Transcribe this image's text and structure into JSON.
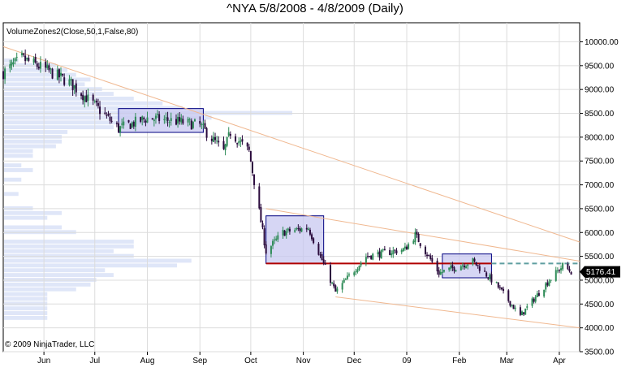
{
  "chart_data": {
    "type": "candlestick",
    "title": "^NYA  5/8/2008 - 4/8/2009 (Daily)",
    "indicator_label": "VolumeZones2(Close,50,1,False,80)",
    "copyright": "© 2009 NinjaTrader, LLC",
    "last_price": "5176.41",
    "last_value": 5176.41,
    "ylim": [
      3500,
      10400
    ],
    "y_ticks": [
      10000,
      9500,
      9000,
      8500,
      8000,
      7500,
      7000,
      6500,
      6000,
      5500,
      5000,
      4500,
      4000,
      3500
    ],
    "y_tick_labels": [
      "10000.00",
      "9500.00",
      "9000.00",
      "8500.00",
      "8000.00",
      "7500.00",
      "7000.00",
      "6500.00",
      "6000.00",
      "5500.00",
      "5000.00",
      "4500.00",
      "4000.00",
      "3500.00"
    ],
    "x_range": [
      "2008-05-08",
      "2009-04-13"
    ],
    "x_ticks": [
      {
        "label": "Jun",
        "date": "2008-06-01"
      },
      {
        "label": "Jul",
        "date": "2008-07-01"
      },
      {
        "label": "Aug",
        "date": "2008-08-01"
      },
      {
        "label": "Sep",
        "date": "2008-09-01"
      },
      {
        "label": "Oct",
        "date": "2008-10-01"
      },
      {
        "label": "Nov",
        "date": "2008-11-01"
      },
      {
        "label": "Dec",
        "date": "2008-12-01"
      },
      {
        "label": "09",
        "date": "2009-01-01"
      },
      {
        "label": "Feb",
        "date": "2009-02-01"
      },
      {
        "label": "Mar",
        "date": "2009-03-01"
      },
      {
        "label": "Apr",
        "date": "2009-04-01"
      }
    ],
    "close_path": [
      {
        "date": "2008-05-08",
        "close": 9350
      },
      {
        "date": "2008-05-19",
        "close": 9650
      },
      {
        "date": "2008-06-02",
        "close": 9420
      },
      {
        "date": "2008-06-16",
        "close": 9150
      },
      {
        "date": "2008-06-30",
        "close": 8700
      },
      {
        "date": "2008-07-15",
        "close": 8180
      },
      {
        "date": "2008-08-01",
        "close": 8400
      },
      {
        "date": "2008-08-15",
        "close": 8350
      },
      {
        "date": "2008-09-01",
        "close": 8250
      },
      {
        "date": "2008-09-15",
        "close": 7700
      },
      {
        "date": "2008-09-19",
        "close": 8100
      },
      {
        "date": "2008-09-30",
        "close": 7700
      },
      {
        "date": "2008-10-10",
        "close": 5600
      },
      {
        "date": "2008-10-20",
        "close": 6000
      },
      {
        "date": "2008-11-04",
        "close": 6100
      },
      {
        "date": "2008-11-20",
        "close": 4750
      },
      {
        "date": "2008-12-08",
        "close": 5500
      },
      {
        "date": "2008-12-31",
        "close": 5650
      },
      {
        "date": "2009-01-06",
        "close": 5950
      },
      {
        "date": "2009-01-20",
        "close": 5150
      },
      {
        "date": "2009-02-09",
        "close": 5400
      },
      {
        "date": "2009-02-23",
        "close": 4900
      },
      {
        "date": "2009-03-09",
        "close": 4250
      },
      {
        "date": "2009-03-26",
        "close": 5000
      },
      {
        "date": "2009-04-03",
        "close": 5300
      },
      {
        "date": "2009-04-08",
        "close": 5176.41
      }
    ],
    "zone_boxes": [
      {
        "start": "2008-07-15",
        "end": "2008-09-03",
        "low": 8100,
        "high": 8600
      },
      {
        "start": "2008-10-10",
        "end": "2008-11-13",
        "low": 5350,
        "high": 6350
      },
      {
        "start": "2009-01-22",
        "end": "2009-02-20",
        "low": 5050,
        "high": 5550
      }
    ],
    "support_line": {
      "start": "2008-10-10",
      "end": "2009-02-20",
      "value": 5350
    },
    "dashed_level": {
      "start": "2009-02-20",
      "end": "2009-04-13",
      "value": 5350
    },
    "trend_lines": [
      {
        "start": {
          "date": "2008-05-08",
          "value": 9900
        },
        "end": {
          "date": "2009-04-13",
          "value": 5800
        }
      },
      {
        "start": {
          "date": "2008-10-10",
          "value": 6500
        },
        "end": {
          "date": "2009-04-13",
          "value": 5400
        }
      },
      {
        "start": {
          "date": "2008-11-20",
          "value": 4650
        },
        "end": {
          "date": "2009-04-13",
          "value": 4000
        }
      }
    ],
    "volume_profile": {
      "bin_size": 100,
      "bins": [
        {
          "price": 9600,
          "strength": 0.05
        },
        {
          "price": 9500,
          "strength": 0.18
        },
        {
          "price": 9400,
          "strength": 0.22
        },
        {
          "price": 9300,
          "strength": 0.25
        },
        {
          "price": 9200,
          "strength": 0.3
        },
        {
          "price": 9100,
          "strength": 0.28
        },
        {
          "price": 9000,
          "strength": 0.34
        },
        {
          "price": 8900,
          "strength": 0.38
        },
        {
          "price": 8800,
          "strength": 0.45
        },
        {
          "price": 8700,
          "strength": 0.55
        },
        {
          "price": 8600,
          "strength": 0.62
        },
        {
          "price": 8500,
          "strength": 1.0
        },
        {
          "price": 8400,
          "strength": 0.72
        },
        {
          "price": 8300,
          "strength": 0.5
        },
        {
          "price": 8200,
          "strength": 0.38
        },
        {
          "price": 8100,
          "strength": 0.22
        },
        {
          "price": 8000,
          "strength": 0.2
        },
        {
          "price": 7900,
          "strength": 0.2
        },
        {
          "price": 7800,
          "strength": 0.18
        },
        {
          "price": 7700,
          "strength": 0.1
        },
        {
          "price": 7600,
          "strength": 0.1
        },
        {
          "price": 7400,
          "strength": 0.06
        },
        {
          "price": 7300,
          "strength": 0.1
        },
        {
          "price": 7100,
          "strength": 0.06
        },
        {
          "price": 6800,
          "strength": 0.05
        },
        {
          "price": 6500,
          "strength": 0.1
        },
        {
          "price": 6400,
          "strength": 0.2
        },
        {
          "price": 6300,
          "strength": 0.15
        },
        {
          "price": 6100,
          "strength": 0.2
        },
        {
          "price": 6000,
          "strength": 0.25
        },
        {
          "price": 5800,
          "strength": 0.45
        },
        {
          "price": 5700,
          "strength": 0.45
        },
        {
          "price": 5600,
          "strength": 0.38
        },
        {
          "price": 5500,
          "strength": 0.45
        },
        {
          "price": 5400,
          "strength": 0.65
        },
        {
          "price": 5300,
          "strength": 0.6
        },
        {
          "price": 5200,
          "strength": 0.35
        },
        {
          "price": 5100,
          "strength": 0.38
        },
        {
          "price": 5000,
          "strength": 0.32
        },
        {
          "price": 4900,
          "strength": 0.3
        },
        {
          "price": 4800,
          "strength": 0.25
        },
        {
          "price": 4700,
          "strength": 0.15
        },
        {
          "price": 4600,
          "strength": 0.15
        },
        {
          "price": 4500,
          "strength": 0.15
        },
        {
          "price": 4400,
          "strength": 0.15
        },
        {
          "price": 4300,
          "strength": 0.15
        },
        {
          "price": 4200,
          "strength": 0.15
        }
      ]
    }
  },
  "colors": {
    "background": "#ffffff",
    "axis": "#000000",
    "gridline": "#dcdcdc",
    "up_candle": "#2e8b57",
    "down_candle": "#2a0a3c",
    "trend_line": "#f0b890",
    "zone_fill": "#c8c8f0",
    "zone_stroke": "#000080",
    "support_line": "#b00000",
    "dashed_level": "#5f9ea0",
    "volume_profile": "#dfe6f8",
    "price_badge_bg": "#000000",
    "price_badge_text": "#ffffff"
  }
}
